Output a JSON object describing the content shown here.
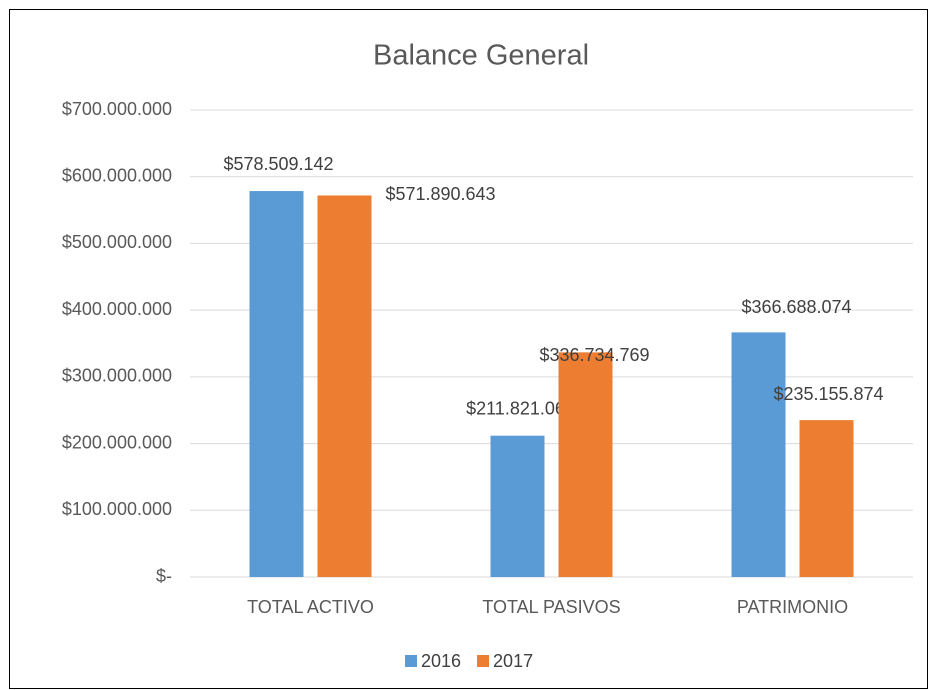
{
  "chart_data": {
    "type": "bar",
    "title": "Balance General",
    "categories": [
      "TOTAL ACTIVO",
      "TOTAL PASIVOS",
      "PATRIMONIO"
    ],
    "series": [
      {
        "name": "2016",
        "color": "#5b9bd5",
        "values": [
          578509142,
          211821068,
          366688074
        ],
        "value_labels": [
          "$578.509.142",
          "$211.821.068",
          "$366.688.074"
        ]
      },
      {
        "name": "2017",
        "color": "#ed7d31",
        "values": [
          571890643,
          336734769,
          235155874
        ],
        "value_labels": [
          "$571.890.643",
          "$336.734.769",
          "$235.155.874"
        ]
      }
    ],
    "ylim": [
      0,
      700000000
    ],
    "yticks": [
      {
        "value": 0,
        "label": "$-"
      },
      {
        "value": 100000000,
        "label": "$100.000.000"
      },
      {
        "value": 200000000,
        "label": "$200.000.000"
      },
      {
        "value": 300000000,
        "label": "$300.000.000"
      },
      {
        "value": 400000000,
        "label": "$400.000.000"
      },
      {
        "value": 500000000,
        "label": "$500.000.000"
      },
      {
        "value": 600000000,
        "label": "$600.000.000"
      },
      {
        "value": 700000000,
        "label": "$700.000.000"
      }
    ],
    "grid": true,
    "legend": "bottom"
  }
}
